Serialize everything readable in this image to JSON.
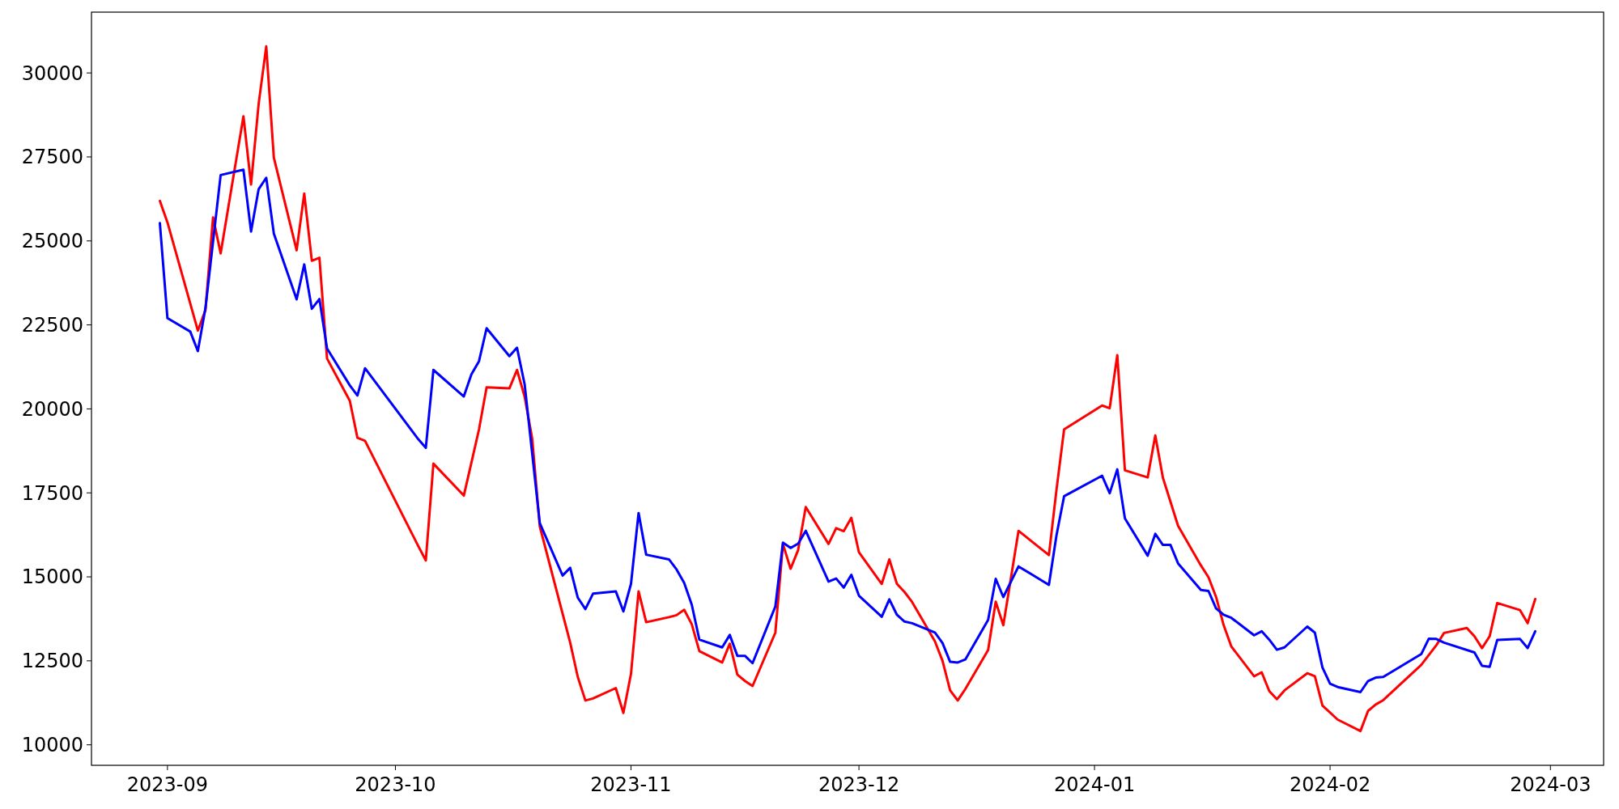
{
  "chart_data": {
    "type": "line",
    "xlim": [
      "2023-08-22",
      "2024-03-08"
    ],
    "ylim": [
      9390,
      31810
    ],
    "xticks": [
      {
        "value": "2023-09-01",
        "label": "2023-09"
      },
      {
        "value": "2023-10-01",
        "label": "2023-10"
      },
      {
        "value": "2023-11-01",
        "label": "2023-11"
      },
      {
        "value": "2023-12-01",
        "label": "2023-12"
      },
      {
        "value": "2024-01-01",
        "label": "2024-01"
      },
      {
        "value": "2024-02-01",
        "label": "2024-02"
      },
      {
        "value": "2024-03-01",
        "label": "2024-03"
      }
    ],
    "yticks": [
      10000,
      12500,
      15000,
      17500,
      20000,
      22500,
      25000,
      27500,
      30000
    ],
    "grid": false,
    "line_style": "solid",
    "marker": "none",
    "series": [
      {
        "color": "#ff0000",
        "x": [
          "2023-08-31",
          "2023-09-01",
          "2023-09-05",
          "2023-09-06",
          "2023-09-07",
          "2023-09-08",
          "2023-09-11",
          "2023-09-12",
          "2023-09-13",
          "2023-09-14",
          "2023-09-15",
          "2023-09-18",
          "2023-09-19",
          "2023-09-20",
          "2023-09-21",
          "2023-09-22",
          "2023-09-25",
          "2023-09-26",
          "2023-09-27",
          "2023-10-04",
          "2023-10-05",
          "2023-10-06",
          "2023-10-10",
          "2023-10-11",
          "2023-10-12",
          "2023-10-13",
          "2023-10-16",
          "2023-10-17",
          "2023-10-18",
          "2023-10-19",
          "2023-10-20",
          "2023-10-24",
          "2023-10-25",
          "2023-10-26",
          "2023-10-27",
          "2023-10-30",
          "2023-10-31",
          "2023-11-01",
          "2023-11-02",
          "2023-11-03",
          "2023-11-06",
          "2023-11-07",
          "2023-11-08",
          "2023-11-09",
          "2023-11-10",
          "2023-11-13",
          "2023-11-14",
          "2023-11-15",
          "2023-11-16",
          "2023-11-17",
          "2023-11-20",
          "2023-11-21",
          "2023-11-22",
          "2023-11-23",
          "2023-11-24",
          "2023-11-27",
          "2023-11-28",
          "2023-11-29",
          "2023-11-30",
          "2023-12-01",
          "2023-12-04",
          "2023-12-05",
          "2023-12-06",
          "2023-12-07",
          "2023-12-08",
          "2023-12-11",
          "2023-12-12",
          "2023-12-13",
          "2023-12-14",
          "2023-12-15",
          "2023-12-18",
          "2023-12-19",
          "2023-12-20",
          "2023-12-22",
          "2023-12-26",
          "2023-12-27",
          "2023-12-28",
          "2024-01-02",
          "2024-01-03",
          "2024-01-04",
          "2024-01-05",
          "2024-01-08",
          "2024-01-09",
          "2024-01-10",
          "2024-01-12",
          "2024-01-15",
          "2024-01-16",
          "2024-01-17",
          "2024-01-18",
          "2024-01-19",
          "2024-01-22",
          "2024-01-23",
          "2024-01-24",
          "2024-01-25",
          "2024-01-26",
          "2024-01-29",
          "2024-01-30",
          "2024-01-31",
          "2024-02-02",
          "2024-02-05",
          "2024-02-06",
          "2024-02-07",
          "2024-02-08",
          "2024-02-13",
          "2024-02-15",
          "2024-02-16",
          "2024-02-19",
          "2024-02-20",
          "2024-02-21",
          "2024-02-22",
          "2024-02-23",
          "2024-02-26",
          "2024-02-27",
          "2024-02-28"
        ],
        "values": [
          26190,
          25550,
          22330,
          22940,
          25700,
          24630,
          28710,
          26680,
          29080,
          30790,
          27480,
          24720,
          26410,
          24410,
          24500,
          21500,
          20240,
          19140,
          19050,
          15920,
          15490,
          18370,
          17420,
          18400,
          19390,
          20640,
          20610,
          21160,
          20370,
          19110,
          16500,
          13040,
          12020,
          11320,
          11380,
          11690,
          10950,
          12110,
          14570,
          13650,
          13800,
          13860,
          14020,
          13590,
          12790,
          12450,
          13010,
          12090,
          11900,
          11750,
          13340,
          15980,
          15240,
          15800,
          17080,
          15980,
          16450,
          16360,
          16760,
          15730,
          14790,
          15520,
          14790,
          14550,
          14250,
          13080,
          12500,
          11620,
          11320,
          11660,
          12820,
          14260,
          13560,
          16370,
          15650,
          17600,
          19390,
          20100,
          20020,
          21600,
          18170,
          17960,
          19210,
          17950,
          16520,
          15340,
          14990,
          14400,
          13560,
          12930,
          12040,
          12160,
          11600,
          11360,
          11620,
          12130,
          12040,
          11170,
          10750,
          10410,
          11010,
          11200,
          11330,
          12380,
          12970,
          13330,
          13480,
          13230,
          12880,
          13230,
          14220,
          14010,
          13620,
          14340
        ]
      },
      {
        "color": "#0000ff",
        "x": [
          "2023-08-31",
          "2023-09-01",
          "2023-09-04",
          "2023-09-05",
          "2023-09-06",
          "2023-09-08",
          "2023-09-11",
          "2023-09-12",
          "2023-09-13",
          "2023-09-14",
          "2023-09-15",
          "2023-09-18",
          "2023-09-19",
          "2023-09-20",
          "2023-09-21",
          "2023-09-22",
          "2023-09-25",
          "2023-09-26",
          "2023-09-27",
          "2023-10-04",
          "2023-10-05",
          "2023-10-06",
          "2023-10-10",
          "2023-10-11",
          "2023-10-12",
          "2023-10-13",
          "2023-10-16",
          "2023-10-17",
          "2023-10-18",
          "2023-10-20",
          "2023-10-23",
          "2023-10-24",
          "2023-10-25",
          "2023-10-26",
          "2023-10-27",
          "2023-10-30",
          "2023-10-31",
          "2023-11-01",
          "2023-11-02",
          "2023-11-03",
          "2023-11-06",
          "2023-11-07",
          "2023-11-08",
          "2023-11-09",
          "2023-11-10",
          "2023-11-13",
          "2023-11-14",
          "2023-11-15",
          "2023-11-16",
          "2023-11-17",
          "2023-11-20",
          "2023-11-21",
          "2023-11-22",
          "2023-11-23",
          "2023-11-24",
          "2023-11-27",
          "2023-11-28",
          "2023-11-29",
          "2023-11-30",
          "2023-12-01",
          "2023-12-04",
          "2023-12-05",
          "2023-12-06",
          "2023-12-07",
          "2023-12-08",
          "2023-12-11",
          "2023-12-12",
          "2023-12-13",
          "2023-12-14",
          "2023-12-15",
          "2023-12-18",
          "2023-12-19",
          "2023-12-20",
          "2023-12-22",
          "2023-12-26",
          "2023-12-27",
          "2023-12-28",
          "2024-01-02",
          "2024-01-03",
          "2024-01-04",
          "2024-01-05",
          "2024-01-08",
          "2024-01-09",
          "2024-01-10",
          "2024-01-11",
          "2024-01-12",
          "2024-01-15",
          "2024-01-16",
          "2024-01-17",
          "2024-01-18",
          "2024-01-19",
          "2024-01-22",
          "2024-01-23",
          "2024-01-24",
          "2024-01-25",
          "2024-01-26",
          "2024-01-29",
          "2024-01-30",
          "2024-01-31",
          "2024-02-01",
          "2024-02-02",
          "2024-02-05",
          "2024-02-06",
          "2024-02-07",
          "2024-02-08",
          "2024-02-13",
          "2024-02-14",
          "2024-02-15",
          "2024-02-16",
          "2024-02-20",
          "2024-02-21",
          "2024-02-22",
          "2024-02-23",
          "2024-02-26",
          "2024-02-27",
          "2024-02-28"
        ],
        "values": [
          25530,
          22700,
          22300,
          21720,
          23000,
          26960,
          27120,
          25280,
          26540,
          26880,
          25220,
          23260,
          24300,
          22980,
          23270,
          21800,
          20700,
          20400,
          21210,
          19100,
          18840,
          21160,
          20370,
          21030,
          21420,
          22400,
          21570,
          21820,
          20740,
          16600,
          15040,
          15270,
          14380,
          14040,
          14500,
          14570,
          13970,
          14790,
          16900,
          15660,
          15520,
          15220,
          14820,
          14170,
          13130,
          12900,
          13270,
          12650,
          12650,
          12430,
          14120,
          16020,
          15860,
          15990,
          16370,
          14860,
          14950,
          14680,
          15060,
          14440,
          13810,
          14330,
          13870,
          13670,
          13620,
          13340,
          13030,
          12470,
          12450,
          12540,
          13720,
          14940,
          14400,
          15310,
          14760,
          16240,
          17400,
          18010,
          17490,
          18200,
          16740,
          15630,
          16280,
          15950,
          15950,
          15400,
          14610,
          14580,
          14060,
          13870,
          13780,
          13260,
          13380,
          13130,
          12830,
          12900,
          13520,
          13340,
          12300,
          11820,
          11720,
          11570,
          11900,
          12000,
          12020,
          12700,
          13160,
          13150,
          13040,
          12750,
          12350,
          12320,
          13120,
          13150,
          12880,
          13380
        ]
      }
    ]
  }
}
